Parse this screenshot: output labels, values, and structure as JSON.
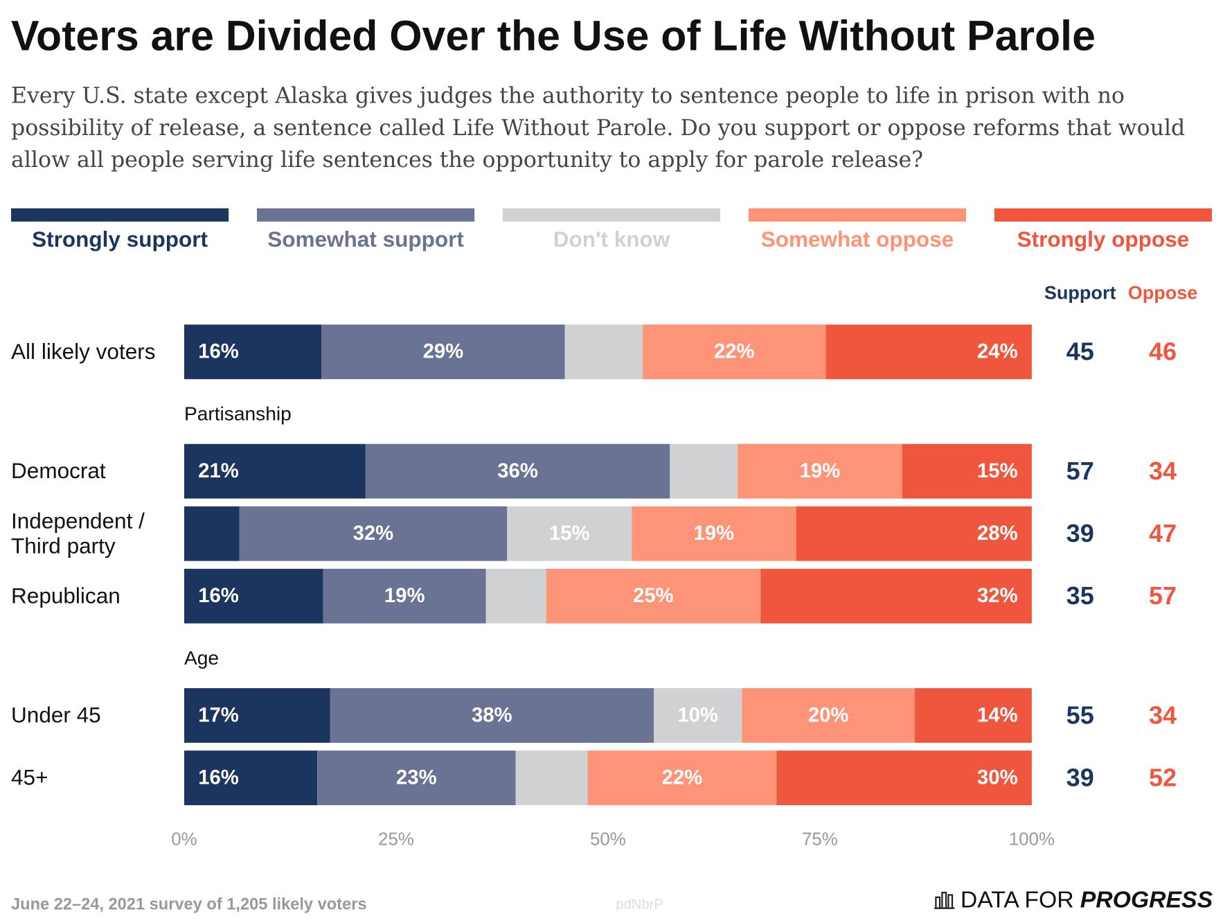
{
  "chart_data": {
    "type": "stacked-bar-horizontal",
    "title": "Voters are Divided Over the Use of Life Without Parole",
    "subtitle": "Every U.S. state except Alaska gives judges the authority to sentence people to life in prison with no possibility of release, a sentence called Life Without Parole. Do you support or oppose reforms that would allow all people serving life sentences the opportunity to apply for parole release?",
    "categories": [
      "All likely voters",
      "Democrat",
      "Independent / Third party",
      "Republican",
      "Under 45",
      "45+"
    ],
    "section_labels": [
      null,
      "Partisanship",
      null,
      null,
      "Age",
      null
    ],
    "series": [
      {
        "name": "Strongly support",
        "color": "#1c355e",
        "values": [
          16.2,
          21.4,
          6.5,
          16.4,
          17.2,
          15.7
        ],
        "value_labels": [
          "16%",
          "21%",
          null,
          "16%",
          "17%",
          "16%"
        ]
      },
      {
        "name": "Somewhat support",
        "color": "#6a7393",
        "values": [
          28.7,
          35.9,
          31.6,
          19.2,
          38.2,
          23.4
        ],
        "value_labels": [
          "29%",
          "36%",
          "32%",
          "19%",
          "38%",
          "23%"
        ]
      },
      {
        "name": "Don't know",
        "color": "#d0d1d3",
        "values": [
          9.2,
          8.0,
          14.7,
          7.1,
          10.4,
          8.5
        ],
        "value_labels": [
          null,
          null,
          "15%",
          null,
          "10%",
          null
        ]
      },
      {
        "name": "Somewhat oppose",
        "color": "#fd9478",
        "values": [
          21.6,
          19.4,
          19.4,
          25.3,
          20.4,
          22.3
        ],
        "value_labels": [
          "22%",
          "19%",
          "19%",
          "25%",
          "20%",
          "22%"
        ]
      },
      {
        "name": "Strongly oppose",
        "color": "#f0563d",
        "values": [
          24.3,
          15.3,
          27.8,
          32.0,
          13.8,
          30.1
        ],
        "value_labels": [
          "24%",
          "15%",
          "28%",
          "32%",
          "14%",
          "30%"
        ]
      }
    ],
    "totals": [
      {
        "name": "Support",
        "color": "#1c355e",
        "values": [
          45,
          57,
          39,
          35,
          55,
          39
        ]
      },
      {
        "name": "Oppose",
        "color": "#f0563d",
        "values": [
          46,
          34,
          47,
          57,
          34,
          52
        ]
      }
    ],
    "xlim": [
      0,
      100
    ],
    "xticks": [
      {
        "value": 0,
        "label": "0%"
      },
      {
        "value": 25,
        "label": "25%"
      },
      {
        "value": 50,
        "label": "50%"
      },
      {
        "value": 75,
        "label": "75%"
      },
      {
        "value": 100,
        "label": "100%"
      }
    ],
    "source": "June 22–24, 2021 survey of 1,205 likely voters",
    "watermark": "pdNbrP",
    "logo": [
      "DATA FOR",
      "PROGRESS"
    ]
  }
}
